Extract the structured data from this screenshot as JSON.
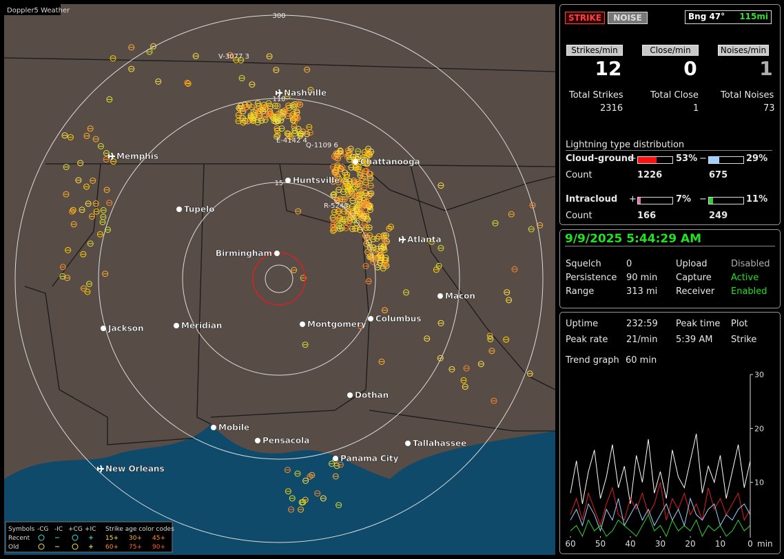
{
  "map": {
    "title": "Doppler5 Weather",
    "ring_labels": [
      "300",
      "110",
      "15"
    ],
    "cities": [
      "Nashville",
      "Memphis",
      "Tupelo",
      "Huntsville",
      "Chattanooga",
      "Birmingham",
      "Atlanta",
      "Macon",
      "Jackson",
      "Meridian",
      "Montgomery",
      "Columbus",
      "Dothan",
      "Mobile",
      "Pensacola",
      "Tallahassee",
      "Panama City",
      "New Orleans"
    ],
    "strike_labels": [
      "V-3077 3",
      "E-4142 4",
      "Q-1109 6",
      "R-5243"
    ],
    "legend": {
      "symbols_label": "Symbols",
      "symbol_types": [
        "-CG",
        "-IC",
        "+CG",
        "+IC"
      ],
      "age_title": "Strike age color codes",
      "rows": [
        "Recent",
        "Old"
      ],
      "recent_ages": [
        "15+",
        "30+",
        "45+"
      ],
      "old_ages": [
        "60+",
        "75+",
        "90+"
      ]
    }
  },
  "status": {
    "mode_buttons": [
      "STRIKE",
      "NOISE"
    ],
    "bearing": "Bng 47°",
    "distance": "115mi",
    "rate_headers": [
      "Strikes/min",
      "Close/min",
      "Noises/min"
    ],
    "rates": [
      12,
      0,
      1
    ],
    "total_headers": [
      "Total Strikes",
      "Total Close",
      "Total Noises"
    ],
    "totals": [
      2316,
      1,
      73
    ],
    "distribution": {
      "title": "Lightning type distribution",
      "rows": [
        {
          "name": "Cloud-ground",
          "pos_sign": "+",
          "pos_pct": {
            "value": 53,
            "label": "53%"
          },
          "neg_sign": "−",
          "neg_pct": {
            "value": 29,
            "label": "29%"
          },
          "count_label": "Count",
          "pos_count": 1226,
          "neg_count": 675
        },
        {
          "name": "Intracloud",
          "pos_sign": "+",
          "pos_pct": {
            "value": 7,
            "label": "7%"
          },
          "neg_sign": "−",
          "neg_pct": {
            "value": 11,
            "label": "11%"
          },
          "count_label": "Count",
          "pos_count": 166,
          "neg_count": 249
        }
      ]
    }
  },
  "clock": {
    "datetime": "9/9/2025 5:44:29 AM",
    "settings": [
      [
        "Squelch",
        "0",
        "Upload",
        "Disabled"
      ],
      [
        "Persistence",
        "90 min",
        "Capture",
        "Active"
      ],
      [
        "Range",
        "313 mi",
        "Receiver",
        "Enabled"
      ]
    ]
  },
  "stats": {
    "rows": [
      [
        "Uptime",
        "232:59",
        "Peak time",
        "Plot"
      ],
      [
        "Peak rate",
        "21/min",
        "5:39 AM",
        "Strike"
      ]
    ],
    "trend_label": "Trend graph",
    "trend_window": "60 min"
  },
  "trend": {
    "type": "line",
    "x_label": "min",
    "xlim": [
      60,
      0
    ],
    "ylim": [
      0,
      30
    ],
    "xticks": [
      60,
      50,
      40,
      30,
      20,
      10,
      0
    ],
    "yticks": [
      10,
      20,
      30
    ],
    "x": [
      60,
      58,
      56,
      54,
      52,
      50,
      48,
      46,
      44,
      42,
      40,
      38,
      36,
      34,
      32,
      30,
      28,
      26,
      24,
      22,
      20,
      18,
      16,
      14,
      12,
      10,
      8,
      6,
      4,
      2,
      0
    ],
    "series": [
      {
        "color": "#ffffff",
        "values": [
          8,
          14,
          6,
          12,
          16,
          7,
          11,
          17,
          9,
          13,
          6,
          15,
          10,
          18,
          8,
          12,
          7,
          16,
          11,
          9,
          14,
          19,
          8,
          13,
          10,
          15,
          7,
          12,
          17,
          9,
          14
        ]
      },
      {
        "color": "#e02020",
        "values": [
          4,
          7,
          3,
          8,
          5,
          2,
          6,
          9,
          4,
          3,
          7,
          5,
          8,
          4,
          6,
          10,
          3,
          7,
          5,
          8,
          4,
          6,
          3,
          9,
          5,
          7,
          4,
          6,
          8,
          3,
          5
        ]
      },
      {
        "color": "#9fd0ff",
        "values": [
          3,
          5,
          2,
          6,
          4,
          1,
          5,
          3,
          7,
          2,
          4,
          6,
          3,
          5,
          2,
          4,
          6,
          3,
          5,
          2,
          7,
          4,
          3,
          5,
          6,
          2,
          4,
          3,
          5,
          6,
          4
        ]
      },
      {
        "color": "#30d030",
        "values": [
          1,
          2,
          0,
          3,
          1,
          2,
          0,
          1,
          3,
          2,
          1,
          0,
          2,
          4,
          1,
          2,
          0,
          3,
          1,
          2,
          1,
          3,
          0,
          2,
          1,
          2,
          0,
          1,
          3,
          1,
          2
        ]
      }
    ]
  }
}
